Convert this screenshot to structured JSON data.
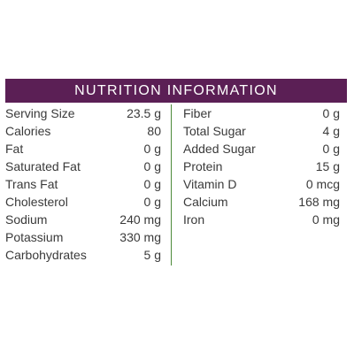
{
  "title": "NUTRITION INFORMATION",
  "colors": {
    "header_bg": "#5b1f55",
    "header_text": "#ffffff",
    "divider": "#4d8a3a",
    "text": "#3a3a3a"
  },
  "left": [
    {
      "label": "Serving Size",
      "value": "23.5 g"
    },
    {
      "label": "Calories",
      "value": "80"
    },
    {
      "label": "Fat",
      "value": "0 g"
    },
    {
      "label": "Saturated Fat",
      "value": "0 g"
    },
    {
      "label": "Trans Fat",
      "value": "0 g"
    },
    {
      "label": "Cholesterol",
      "value": "0 g"
    },
    {
      "label": "Sodium",
      "value": "240 mg"
    },
    {
      "label": "Potassium",
      "value": "330 mg"
    },
    {
      "label": "Carbohydrates",
      "value": "5 g"
    }
  ],
  "right": [
    {
      "label": "Fiber",
      "value": "0 g"
    },
    {
      "label": "Total Sugar",
      "value": "4 g"
    },
    {
      "label": "Added Sugar",
      "value": "0 g"
    },
    {
      "label": "Protein",
      "value": "15 g"
    },
    {
      "label": "Vitamin D",
      "value": "0 mcg"
    },
    {
      "label": "Calcium",
      "value": "168 mg"
    },
    {
      "label": "Iron",
      "value": "0 mg"
    }
  ]
}
